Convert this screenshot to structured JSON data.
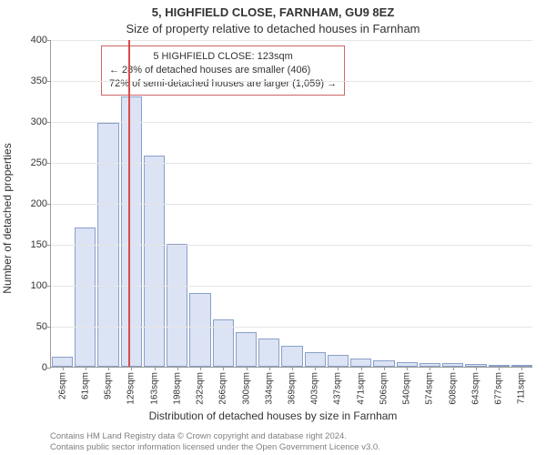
{
  "title": "5, HIGHFIELD CLOSE, FARNHAM, GU9 8EZ",
  "subtitle": "Size of property relative to detached houses in Farnham",
  "y_axis_label": "Number of detached properties",
  "x_axis_label": "Distribution of detached houses by size in Farnham",
  "chart": {
    "type": "histogram",
    "background_color": "#ffffff",
    "bar_fill": "#dbe3f4",
    "bar_border": "#8aa0c8",
    "grid_color": "#e6e6e6",
    "axis_color": "#999999",
    "marker_color": "#d94b4b",
    "annotation_border": "#cc6666",
    "ylim": [
      0,
      400
    ],
    "ytick_step": 50,
    "y_ticks": [
      0,
      50,
      100,
      150,
      200,
      250,
      300,
      350,
      400
    ],
    "categories": [
      "26sqm",
      "61sqm",
      "95sqm",
      "129sqm",
      "163sqm",
      "198sqm",
      "232sqm",
      "266sqm",
      "300sqm",
      "334sqm",
      "369sqm",
      "403sqm",
      "437sqm",
      "471sqm",
      "506sqm",
      "540sqm",
      "574sqm",
      "608sqm",
      "643sqm",
      "677sqm",
      "711sqm"
    ],
    "values": [
      12,
      170,
      298,
      330,
      258,
      150,
      90,
      58,
      42,
      34,
      26,
      18,
      14,
      10,
      8,
      6,
      5,
      4,
      3,
      2,
      2
    ],
    "bar_width_ratio": 0.92,
    "marker_value_sqm": 123,
    "marker_bin_index": 2.85,
    "title_fontsize": 13,
    "subtitle_fontsize": 13,
    "axis_label_fontsize": 12,
    "tick_fontsize": 11,
    "xtick_fontsize": 10
  },
  "annotation": {
    "line1": "5 HIGHFIELD CLOSE: 123sqm",
    "line2": "← 28% of detached houses are smaller (406)",
    "line3": "72% of semi-detached houses are larger (1,059) →"
  },
  "footer": {
    "line1": "Contains HM Land Registry data © Crown copyright and database right 2024.",
    "line2": "Contains public sector information licensed under the Open Government Licence v3.0."
  }
}
